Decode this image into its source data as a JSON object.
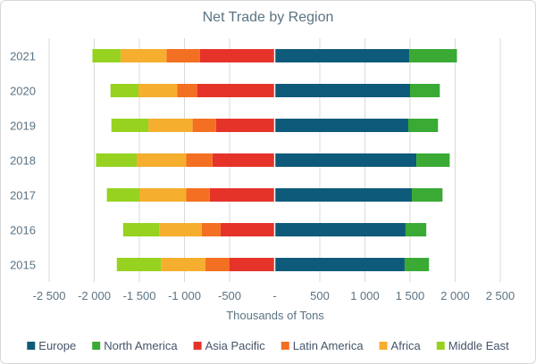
{
  "chart_data": {
    "type": "bar",
    "orientation": "horizontal",
    "stacked": true,
    "title": "Net Trade by Region",
    "xlabel": "Thousands of Tons",
    "ylabel": "",
    "xlim": [
      -2500,
      2500
    ],
    "x_ticks": [
      -2500,
      -2000,
      -1500,
      -1000,
      -500,
      0,
      500,
      1000,
      1500,
      2000,
      2500
    ],
    "x_tick_labels": [
      "-2 500",
      "-2 000",
      "-1 500",
      "-1 000",
      "-500",
      "-",
      "500",
      "1 000",
      "1 500",
      "2 000",
      "2 500"
    ],
    "categories": [
      "2021",
      "2020",
      "2019",
      "2018",
      "2017",
      "2016",
      "2015"
    ],
    "series": [
      {
        "name": "Europe",
        "color": "#0e5a7a",
        "values": [
          1490,
          1500,
          1480,
          1570,
          1520,
          1450,
          1440
        ]
      },
      {
        "name": "North America",
        "color": "#3aaa35",
        "values": [
          530,
          330,
          330,
          370,
          340,
          230,
          270
        ]
      },
      {
        "name": "Asia Pacific",
        "color": "#e5332a",
        "values": [
          -830,
          -860,
          -650,
          -690,
          -720,
          -600,
          -500
        ]
      },
      {
        "name": "Latin America",
        "color": "#f36f21",
        "values": [
          -370,
          -220,
          -260,
          -290,
          -260,
          -210,
          -270
        ]
      },
      {
        "name": "Africa",
        "color": "#f5ae2d",
        "values": [
          -510,
          -430,
          -490,
          -550,
          -520,
          -470,
          -490
        ]
      },
      {
        "name": "Middle East",
        "color": "#96d21f",
        "values": [
          -310,
          -310,
          -410,
          -450,
          -360,
          -400,
          -490
        ]
      }
    ],
    "legend_position": "bottom",
    "grid": "vertical"
  }
}
